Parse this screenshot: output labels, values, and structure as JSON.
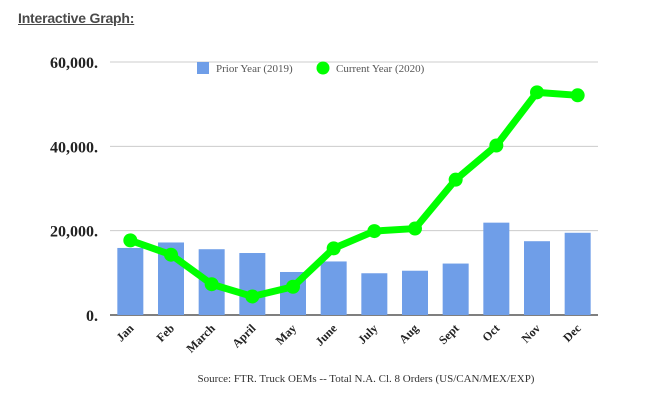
{
  "heading": "Interactive Graph:",
  "chart_data": {
    "type": "bar",
    "categories": [
      "Jan",
      "Feb",
      "March",
      "April",
      "May",
      "June",
      "July",
      "Aug",
      "Sept",
      "Oct",
      "Nov",
      "Dec"
    ],
    "series": [
      {
        "name": "Prior Year (2019)",
        "type": "bar",
        "color": "#6f9ee8",
        "values": [
          15900,
          17200,
          15600,
          14700,
          10200,
          12700,
          9900,
          10500,
          12200,
          21900,
          17500,
          19500
        ]
      },
      {
        "name": "Current Year (2020)",
        "type": "line",
        "color": "#00ff00",
        "values": [
          17700,
          14300,
          7300,
          4400,
          6700,
          15800,
          19900,
          20500,
          32100,
          40200,
          52800,
          52100
        ]
      }
    ],
    "y_ticks": [
      "0.",
      "20,000.",
      "40,000.",
      "60,000."
    ],
    "ylim": [
      0,
      60000
    ],
    "grid": true,
    "legend_position": "top-center",
    "source": "Source: FTR. Truck OEMs -- Total N.A. Cl. 8 Orders (US/CAN/MEX/EXP)"
  }
}
